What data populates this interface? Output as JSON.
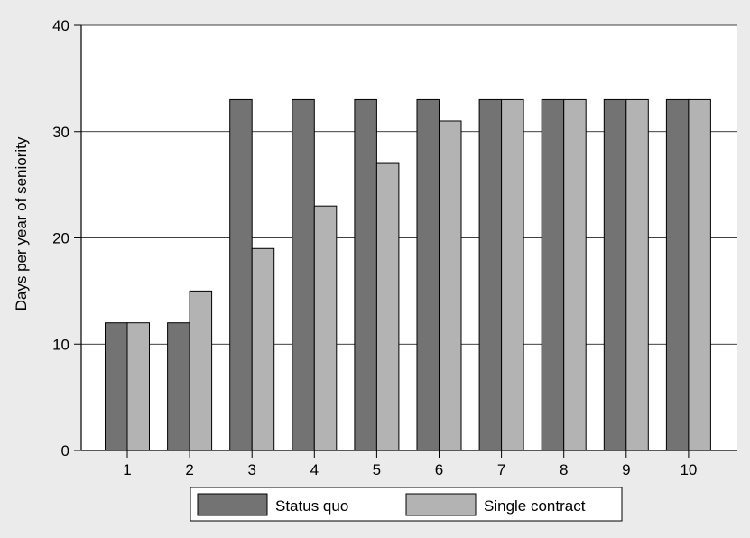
{
  "chart_data": {
    "type": "bar",
    "categories": [
      "1",
      "2",
      "3",
      "4",
      "5",
      "6",
      "7",
      "8",
      "9",
      "10"
    ],
    "series": [
      {
        "name": "Status quo",
        "color": "#737373",
        "values": [
          12,
          12,
          33,
          33,
          33,
          33,
          33,
          33,
          33,
          33
        ]
      },
      {
        "name": "Single contract",
        "color": "#b3b3b3",
        "values": [
          12,
          15,
          19,
          23,
          27,
          31,
          33,
          33,
          33,
          33
        ]
      }
    ],
    "ylabel": "Days per year of seniority",
    "ylim": [
      0,
      40
    ],
    "yticks": [
      0,
      10,
      20,
      30,
      40
    ],
    "grid": true,
    "legend_position": "bottom-center",
    "background_color": "#ebebeb",
    "plot_background_color": "#ffffff"
  }
}
